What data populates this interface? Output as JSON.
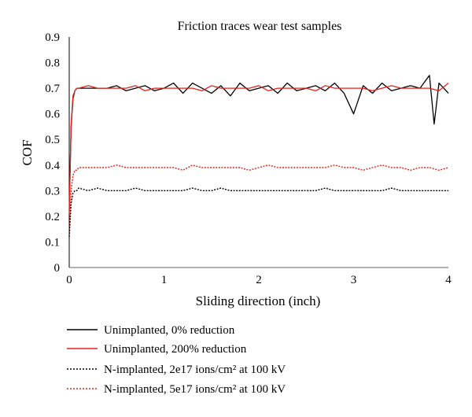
{
  "chart_data": {
    "type": "line",
    "title": "Friction traces wear test samples",
    "xlabel": "Sliding direction (inch)",
    "ylabel": "COF",
    "xlim": [
      0,
      4
    ],
    "ylim": [
      0,
      0.9
    ],
    "x_ticks": [
      "0",
      "1",
      "2",
      "3",
      "4"
    ],
    "y_ticks": [
      "0",
      "0.1",
      "0.2",
      "0.3",
      "0.4",
      "0.5",
      "0.6",
      "0.7",
      "0.8",
      "0.9"
    ],
    "grid": false,
    "legend_position": "bottom",
    "series": [
      {
        "name": "Unimplanted, 0% reduction",
        "color": "#000000",
        "style": "solid",
        "x": [
          0.0,
          0.02,
          0.04,
          0.06,
          0.08,
          0.1,
          0.2,
          0.3,
          0.4,
          0.5,
          0.6,
          0.7,
          0.8,
          0.9,
          1.0,
          1.1,
          1.2,
          1.3,
          1.4,
          1.5,
          1.6,
          1.7,
          1.8,
          1.9,
          2.0,
          2.1,
          2.2,
          2.3,
          2.4,
          2.5,
          2.6,
          2.7,
          2.8,
          2.9,
          3.0,
          3.1,
          3.2,
          3.3,
          3.4,
          3.5,
          3.6,
          3.7,
          3.8,
          3.85,
          3.9,
          4.0
        ],
        "y": [
          0.22,
          0.55,
          0.66,
          0.69,
          0.7,
          0.7,
          0.7,
          0.7,
          0.7,
          0.71,
          0.69,
          0.7,
          0.71,
          0.69,
          0.7,
          0.72,
          0.68,
          0.72,
          0.7,
          0.68,
          0.71,
          0.67,
          0.72,
          0.69,
          0.7,
          0.71,
          0.68,
          0.72,
          0.69,
          0.7,
          0.71,
          0.69,
          0.72,
          0.68,
          0.6,
          0.71,
          0.68,
          0.72,
          0.69,
          0.7,
          0.71,
          0.7,
          0.75,
          0.56,
          0.72,
          0.68
        ]
      },
      {
        "name": "Unimplanted, 200% reduction",
        "color": "#e8211b",
        "style": "solid",
        "x": [
          0.0,
          0.02,
          0.04,
          0.06,
          0.08,
          0.1,
          0.2,
          0.3,
          0.4,
          0.5,
          0.6,
          0.7,
          0.8,
          0.9,
          1.0,
          1.1,
          1.2,
          1.3,
          1.4,
          1.5,
          1.6,
          1.7,
          1.8,
          1.9,
          2.0,
          2.1,
          2.2,
          2.3,
          2.4,
          2.5,
          2.6,
          2.7,
          2.8,
          2.9,
          3.0,
          3.1,
          3.2,
          3.3,
          3.4,
          3.5,
          3.6,
          3.7,
          3.8,
          3.9,
          4.0
        ],
        "y": [
          0.21,
          0.56,
          0.67,
          0.69,
          0.7,
          0.7,
          0.71,
          0.7,
          0.7,
          0.7,
          0.7,
          0.71,
          0.69,
          0.7,
          0.7,
          0.7,
          0.7,
          0.7,
          0.69,
          0.71,
          0.7,
          0.7,
          0.7,
          0.7,
          0.71,
          0.69,
          0.7,
          0.7,
          0.7,
          0.7,
          0.69,
          0.71,
          0.7,
          0.7,
          0.7,
          0.7,
          0.69,
          0.7,
          0.71,
          0.7,
          0.7,
          0.7,
          0.7,
          0.69,
          0.72
        ]
      },
      {
        "name": "N-implanted, 2e17 ions/cm² at 100 kV",
        "color": "#000000",
        "style": "dotted",
        "x": [
          0.0,
          0.02,
          0.04,
          0.06,
          0.08,
          0.1,
          0.2,
          0.3,
          0.4,
          0.5,
          0.6,
          0.7,
          0.8,
          0.9,
          1.0,
          1.1,
          1.2,
          1.3,
          1.4,
          1.5,
          1.6,
          1.7,
          1.8,
          1.9,
          2.0,
          2.1,
          2.2,
          2.3,
          2.4,
          2.5,
          2.6,
          2.7,
          2.8,
          2.9,
          3.0,
          3.1,
          3.2,
          3.3,
          3.4,
          3.5,
          3.6,
          3.7,
          3.8,
          3.9,
          4.0
        ],
        "y": [
          0.12,
          0.25,
          0.29,
          0.3,
          0.3,
          0.31,
          0.3,
          0.31,
          0.3,
          0.3,
          0.3,
          0.31,
          0.3,
          0.3,
          0.3,
          0.3,
          0.3,
          0.31,
          0.3,
          0.3,
          0.31,
          0.3,
          0.3,
          0.3,
          0.3,
          0.3,
          0.3,
          0.3,
          0.3,
          0.3,
          0.3,
          0.31,
          0.3,
          0.3,
          0.3,
          0.3,
          0.3,
          0.3,
          0.31,
          0.3,
          0.3,
          0.3,
          0.3,
          0.3,
          0.3
        ]
      },
      {
        "name": "N-implanted, 5e17 ions/cm² at 100 kV",
        "color": "#e8211b",
        "style": "dotted",
        "x": [
          0.0,
          0.02,
          0.04,
          0.06,
          0.08,
          0.1,
          0.2,
          0.3,
          0.4,
          0.5,
          0.6,
          0.7,
          0.8,
          0.9,
          1.0,
          1.1,
          1.2,
          1.3,
          1.4,
          1.5,
          1.6,
          1.7,
          1.8,
          1.9,
          2.0,
          2.1,
          2.2,
          2.3,
          2.4,
          2.5,
          2.6,
          2.7,
          2.8,
          2.9,
          3.0,
          3.1,
          3.2,
          3.3,
          3.4,
          3.5,
          3.6,
          3.7,
          3.8,
          3.9,
          4.0
        ],
        "y": [
          0.14,
          0.3,
          0.36,
          0.38,
          0.38,
          0.39,
          0.39,
          0.39,
          0.39,
          0.4,
          0.39,
          0.39,
          0.39,
          0.39,
          0.39,
          0.39,
          0.38,
          0.4,
          0.39,
          0.39,
          0.39,
          0.39,
          0.39,
          0.38,
          0.39,
          0.4,
          0.39,
          0.39,
          0.39,
          0.39,
          0.39,
          0.39,
          0.4,
          0.39,
          0.39,
          0.38,
          0.39,
          0.4,
          0.39,
          0.39,
          0.38,
          0.39,
          0.39,
          0.38,
          0.39
        ]
      }
    ]
  }
}
